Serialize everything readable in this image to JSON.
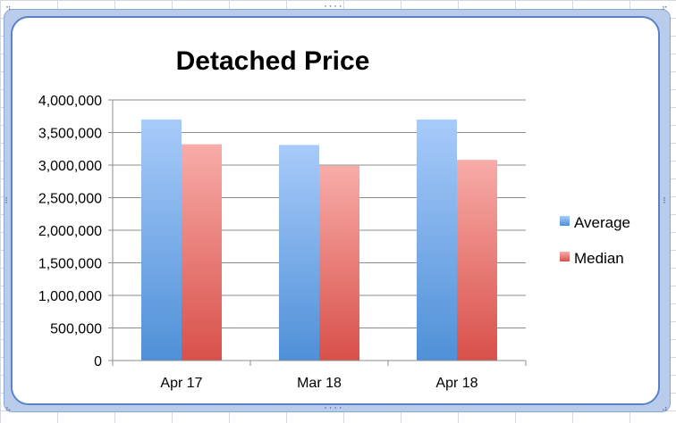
{
  "chart_data": {
    "type": "bar",
    "title": "Detached Price",
    "categories": [
      "Apr 17",
      "Mar 18",
      "Apr 18"
    ],
    "series": [
      {
        "name": "Average",
        "values": [
          3700000,
          3310000,
          3700000
        ],
        "color_top": "#a8cbfa",
        "color_bottom": "#4f90d8"
      },
      {
        "name": "Median",
        "values": [
          3320000,
          2990000,
          3080000
        ],
        "color_top": "#f8aca8",
        "color_bottom": "#d9504a"
      }
    ],
    "ylim": [
      0,
      4000000
    ],
    "yticks": [
      0,
      500000,
      1000000,
      1500000,
      2000000,
      2500000,
      3000000,
      3500000,
      4000000
    ],
    "ytick_labels": [
      "0",
      "500,000",
      "1,000,000",
      "1,500,000",
      "2,000,000",
      "2,500,000",
      "3,000,000",
      "3,500,000",
      "4,000,000"
    ],
    "grid": true,
    "legend_position": "right",
    "xlabel": "",
    "ylabel": ""
  }
}
